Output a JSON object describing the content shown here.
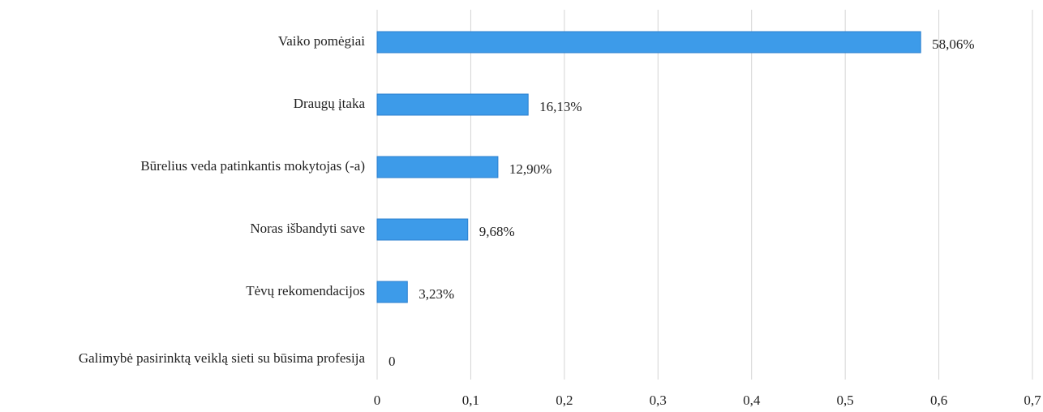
{
  "chart_data": {
    "type": "hbar",
    "categories": [
      "Vaiko pomėgiai",
      "Draugų įtaka",
      "Būrelius veda patinkantis mokytojas (-a)",
      "Noras išbandyti save",
      "Tėvų rekomendacijos",
      "Galimybė pasirinktą veiklą sieti su būsima profesija"
    ],
    "values": [
      0.5806,
      0.1613,
      0.129,
      0.0968,
      0.0323,
      0
    ],
    "value_labels": [
      "58,06%",
      "16,13%",
      "12,90%",
      "9,68%",
      "3,23%",
      "0"
    ],
    "color": "#3d9be9",
    "xlim": [
      0,
      0.7
    ],
    "xticks": [
      0,
      {
        "value": 0.1,
        "label": "0,1"
      },
      {
        "value": 0.2,
        "label": "0,2"
      },
      {
        "value": 0.3,
        "label": "0,3"
      },
      {
        "value": 0.4,
        "label": "0,4"
      },
      {
        "value": 0.5,
        "label": "0,5"
      },
      {
        "value": 0.6,
        "label": "0,6"
      },
      {
        "value": 0.7,
        "label": "0,7"
      }
    ],
    "grid": true
  }
}
